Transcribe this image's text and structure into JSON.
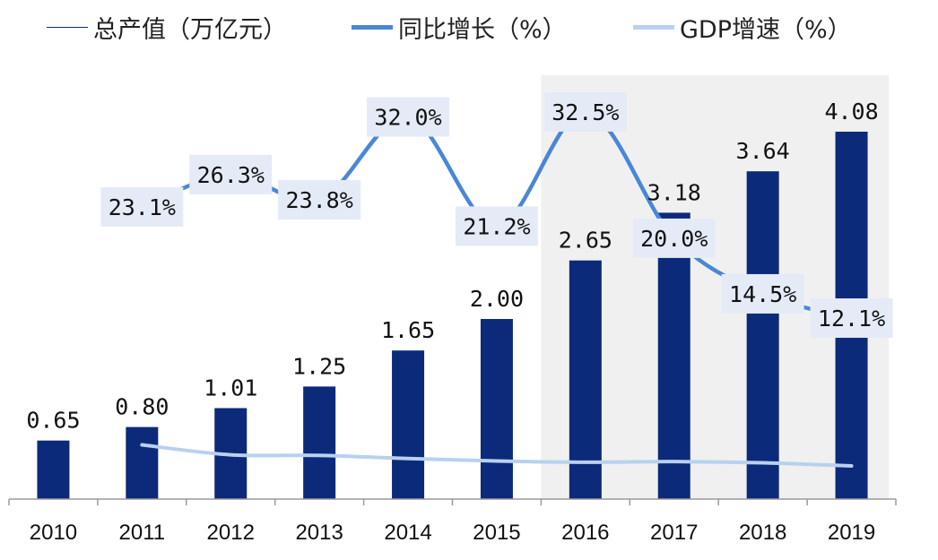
{
  "chart_data": {
    "type": "bar",
    "categories": [
      "2010",
      "2011",
      "2012",
      "2013",
      "2014",
      "2015",
      "2016",
      "2017",
      "2018",
      "2019"
    ],
    "series": [
      {
        "name": "总产值（万亿元）",
        "kind": "bar",
        "color": "#0c2a7a",
        "values": [
          0.65,
          0.8,
          1.01,
          1.25,
          1.65,
          2.0,
          2.65,
          3.18,
          3.64,
          4.08
        ],
        "labels": [
          "0.65",
          "0.80",
          "1.01",
          "1.25",
          "1.65",
          "2.00",
          "2.65",
          "3.18",
          "3.64",
          "4.08"
        ]
      },
      {
        "name": "同比增长（%）",
        "kind": "line",
        "color": "#4a86d8",
        "x": [
          "2011",
          "2012",
          "2013",
          "2014",
          "2015",
          "2016",
          "2017",
          "2018",
          "2019"
        ],
        "values": [
          23.1,
          26.3,
          23.8,
          32.0,
          21.2,
          32.5,
          20.0,
          14.5,
          12.1
        ],
        "labels": [
          "23.1%",
          "26.3%",
          "23.8%",
          "32.0%",
          "21.2%",
          "32.5%",
          "20.0%",
          "14.5%",
          "12.1%"
        ]
      },
      {
        "name": "GDP增速（%）",
        "kind": "line",
        "color": "#b8d1f0",
        "x": [
          "2011",
          "2012",
          "2013",
          "2014",
          "2015",
          "2016",
          "2017",
          "2018",
          "2019"
        ],
        "values": [
          9.5,
          7.9,
          7.8,
          7.3,
          6.9,
          6.7,
          6.8,
          6.6,
          6.1
        ]
      }
    ],
    "highlight_categories": [
      "2016",
      "2017",
      "2018",
      "2019"
    ],
    "highlight_color": "#f0f0f0",
    "legend_position": "top",
    "grid": false,
    "axis_color": "#9a9a9a"
  },
  "legend": {
    "item1": "总产值（万亿元）",
    "item2": "同比增长（%）",
    "item3": "GDP增速（%）"
  }
}
